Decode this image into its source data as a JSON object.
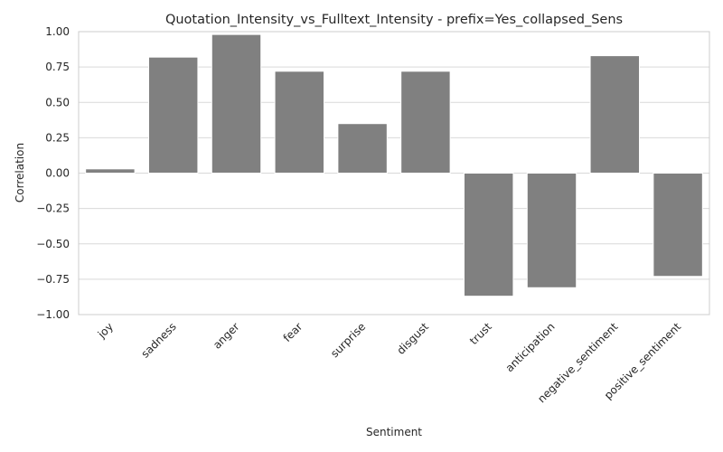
{
  "chart_data": {
    "type": "bar",
    "title": "Quotation_Intensity_vs_Fulltext_Intensity - prefix=Yes_collapsed_Sens",
    "xlabel": "Sentiment",
    "ylabel": "Correlation",
    "categories": [
      "joy",
      "sadness",
      "anger",
      "fear",
      "surprise",
      "disgust",
      "trust",
      "anticipation",
      "negative_sentiment",
      "positive_sentiment"
    ],
    "values": [
      0.03,
      0.82,
      0.98,
      0.72,
      0.35,
      0.72,
      -0.87,
      -0.81,
      0.83,
      -0.73
    ],
    "ylim": [
      -1.0,
      1.0
    ],
    "yticks": [
      "1.00",
      "0.75",
      "0.50",
      "0.25",
      "0.00",
      "−0.25",
      "−0.50",
      "−0.75",
      "−1.00"
    ],
    "ytick_values": [
      1.0,
      0.75,
      0.5,
      0.25,
      0.0,
      -0.25,
      -0.5,
      -0.75,
      -1.0
    ],
    "grid": true,
    "bar_color": "#808080",
    "grid_color": "#d9d9d9"
  }
}
